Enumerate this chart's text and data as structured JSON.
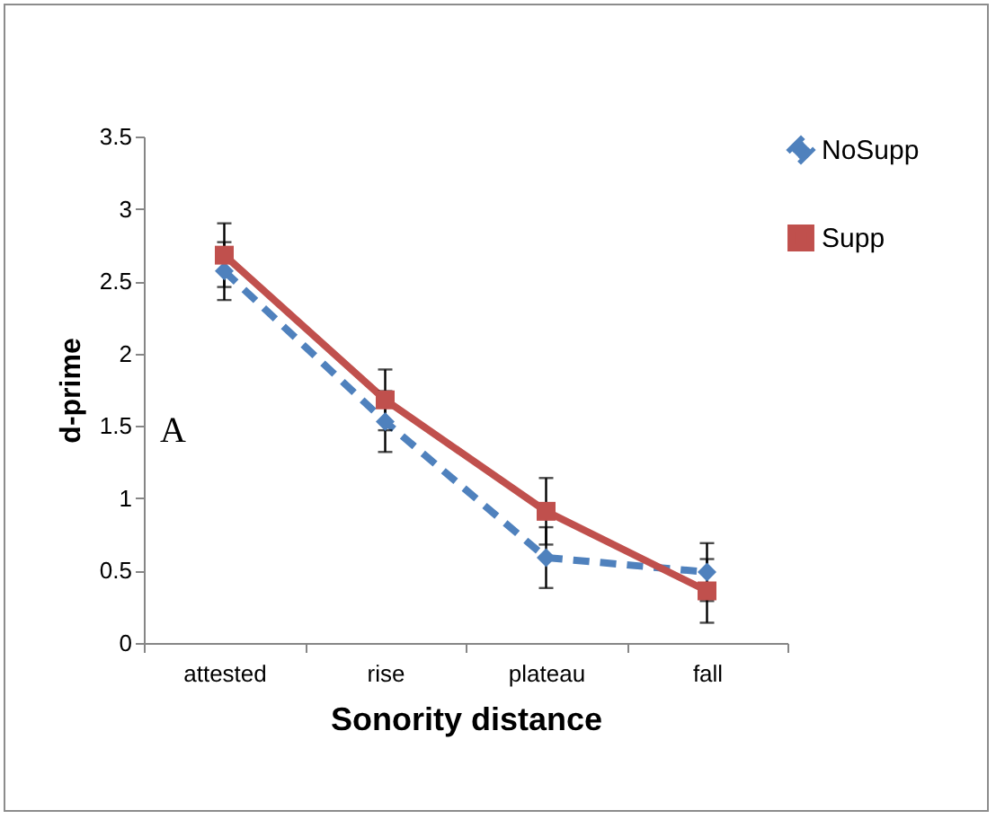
{
  "chart_data": {
    "type": "line",
    "xlabel": "Sonority distance",
    "ylabel": "d-prime",
    "categories": [
      "attested",
      "rise",
      "plateau",
      "fall"
    ],
    "series": [
      {
        "name": "NoSupp",
        "color": "#4f81bd",
        "values": [
          2.57,
          1.53,
          0.59,
          0.49
        ],
        "errors": [
          0.2,
          0.21,
          0.21,
          0.2
        ],
        "marker": "diamond",
        "line_style": "dashed"
      },
      {
        "name": "Supp",
        "color": "#c0504d",
        "values": [
          2.68,
          1.68,
          0.91,
          0.36
        ],
        "errors": [
          0.22,
          0.21,
          0.23,
          0.22
        ],
        "marker": "square",
        "line_style": "solid"
      }
    ],
    "ylim": [
      0,
      3.5
    ],
    "yticks": [
      0,
      0.5,
      1,
      1.5,
      2,
      2.5,
      3,
      3.5
    ],
    "grid": false,
    "legend": "right",
    "annotations": [
      "A"
    ]
  }
}
